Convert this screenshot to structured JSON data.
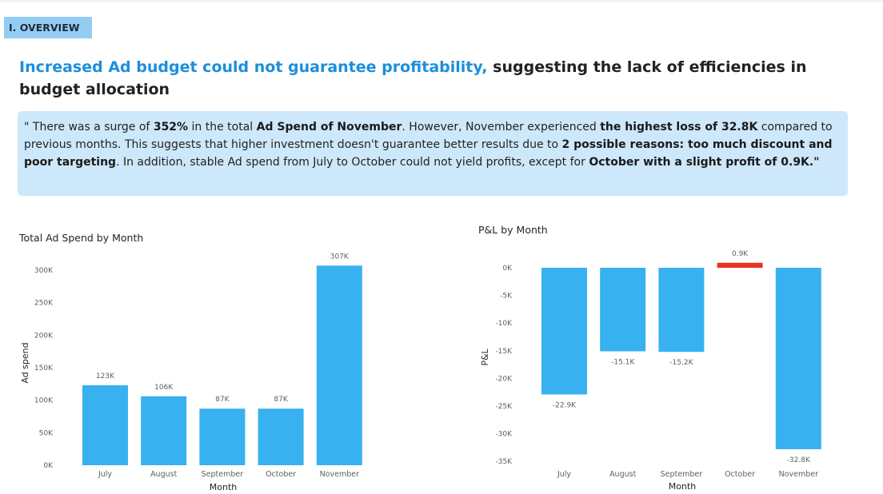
{
  "section": {
    "tag": "I. OVERVIEW"
  },
  "headline": {
    "highlight": "Increased Ad budget could not guarantee profitability,",
    "rest": "suggesting the lack of efficiencies in budget allocation"
  },
  "callout": {
    "p1": "\" There was a surge of ",
    "b1": "352%",
    "p2": " in the total ",
    "b2": "Ad Spend of November",
    "p3": ". However, November experienced ",
    "b3": "the highest loss of 32.8K",
    "p4": " compared to previous months. This suggests that higher investment doesn't guarantee better results due to ",
    "b4": "2 possible reasons: too much discount and poor targeting",
    "p5": ". In addition, stable Ad spend from July to October could not yield profits, except for ",
    "b5": "October with a slight profit of 0.9K.\""
  },
  "colors": {
    "bar": "#37b1ef",
    "bar_negative": "#37b1ef",
    "bar_positive": "#e8331f",
    "highlight": "#1b8fdc",
    "callout_bg": "#cde8fa",
    "tag_bg": "#94cdf3"
  },
  "chart_data": [
    {
      "type": "bar",
      "title": "Total Ad Spend by Month",
      "xlabel": "Month",
      "ylabel": "Ad spend",
      "categories": [
        "July",
        "August",
        "September",
        "October",
        "November"
      ],
      "values": [
        123,
        106,
        87,
        87,
        307
      ],
      "unit": "K",
      "data_labels": [
        "123K",
        "106K",
        "87K",
        "87K",
        "307K"
      ],
      "yticks": [
        0,
        50,
        100,
        150,
        200,
        250,
        300
      ],
      "ytick_labels": [
        "0K",
        "50K",
        "100K",
        "150K",
        "200K",
        "250K",
        "300K"
      ],
      "ylim": [
        0,
        310
      ],
      "grid": false,
      "legend": "none"
    },
    {
      "type": "bar",
      "title": "P&L by Month",
      "xlabel": "Month",
      "ylabel": "P&L",
      "categories": [
        "July",
        "August",
        "September",
        "October",
        "November"
      ],
      "values": [
        -22.9,
        -15.1,
        -15.2,
        0.9,
        -32.8
      ],
      "unit": "K",
      "data_labels": [
        "-22.9K",
        "-15.1K",
        "-15.2K",
        "0.9K",
        "-32.8K"
      ],
      "yticks": [
        0,
        -5,
        -10,
        -15,
        -20,
        -25,
        -30,
        -35
      ],
      "ytick_labels": [
        "0K",
        "-5K",
        "-10K",
        "-15K",
        "-20K",
        "-25K",
        "-30K",
        "-35K"
      ],
      "ylim": [
        -35,
        2
      ],
      "grid": false,
      "legend": "none"
    }
  ]
}
